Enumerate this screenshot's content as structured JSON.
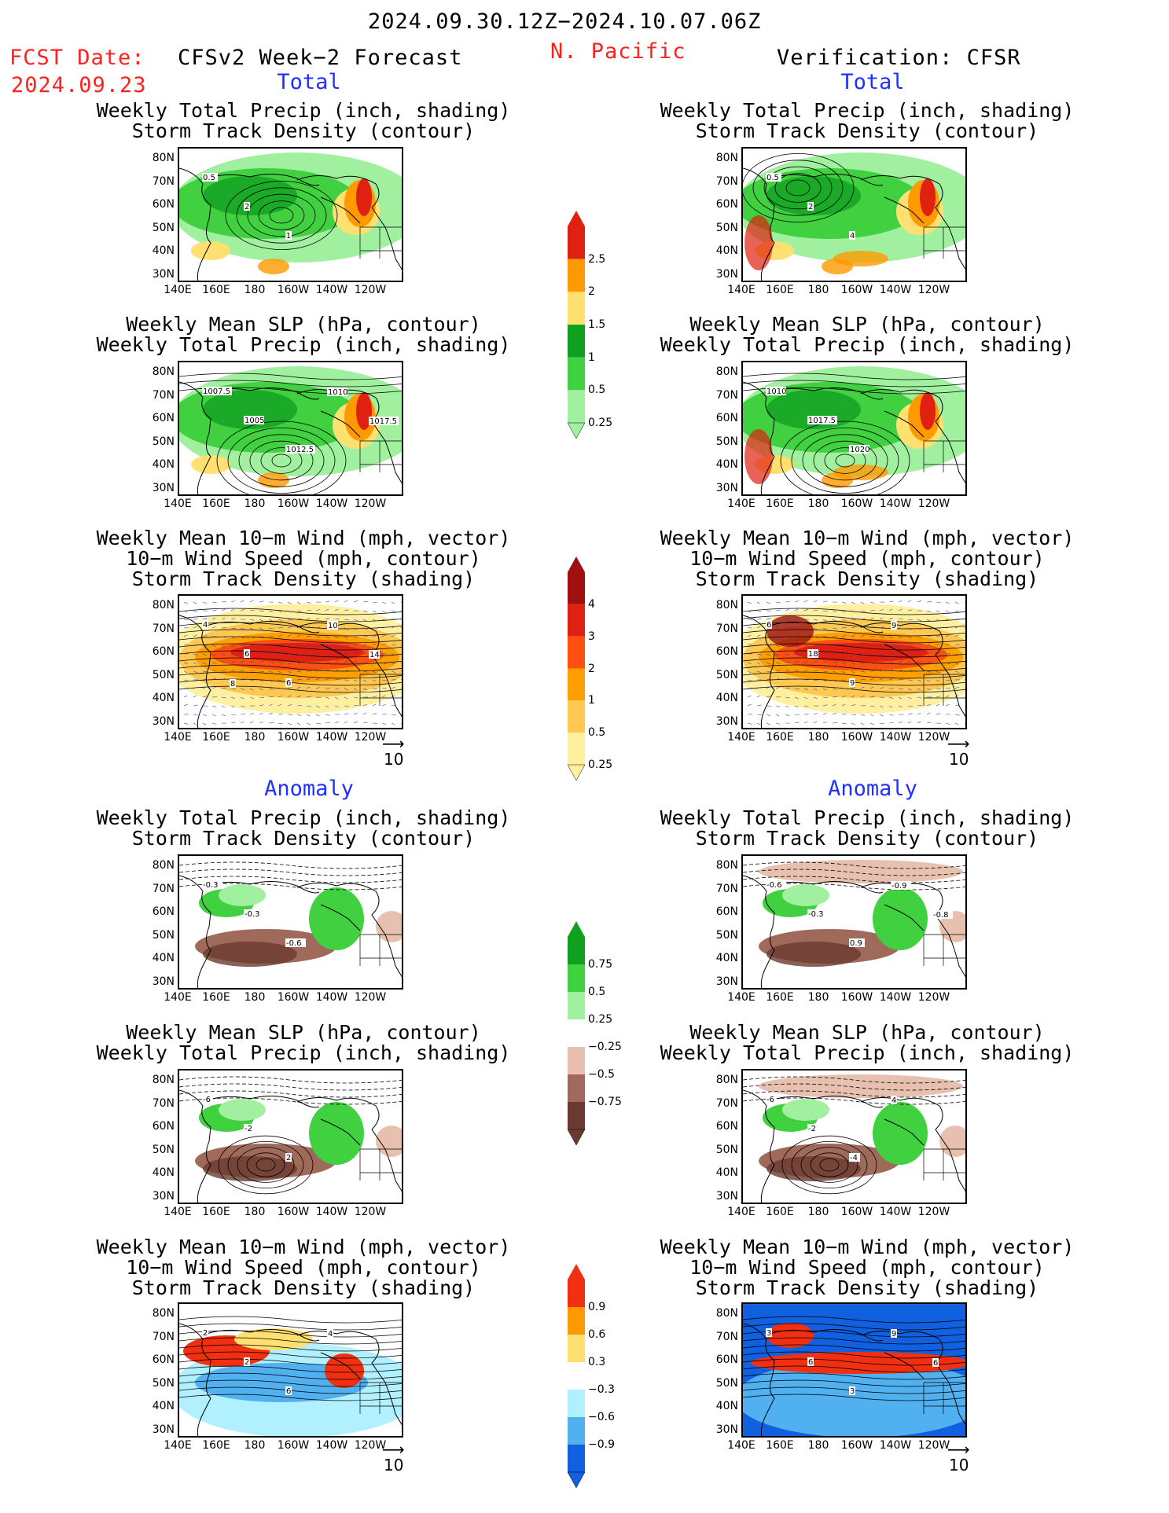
{
  "header": {
    "period": "2024.09.30.12Z−2024.10.07.06Z",
    "fcst_label": "FCST Date:",
    "fcst_date": "2024.09.23",
    "model_title": "CFSv2 Week−2 Forecast",
    "region": "N. Pacific",
    "verification": "Verification: CFSR"
  },
  "sections": {
    "total": "Total",
    "anomaly": "Anomaly"
  },
  "titles": {
    "precip_storm": [
      "Weekly Total Precip (inch, shading)",
      "Storm Track Density (contour)"
    ],
    "slp_precip": [
      "Weekly Mean SLP (hPa, contour)",
      "Weekly Total Precip (inch, shading)"
    ],
    "wind_storm": [
      "Weekly Mean 10−m Wind (mph, vector)",
      "10−m Wind Speed (mph, contour)",
      "Storm Track Density (shading)"
    ]
  },
  "axes": {
    "lat_ticks": [
      "80N",
      "70N",
      "60N",
      "50N",
      "40N",
      "30N"
    ],
    "lon_ticks": [
      "140E",
      "160E",
      "180",
      "160W",
      "140W",
      "120W"
    ]
  },
  "vector_ref": "10",
  "colorbars": {
    "precip_total": {
      "labels": [
        "2.5",
        "2",
        "1.5",
        "1",
        "0.5",
        "0.25"
      ],
      "colors": [
        "#e02010",
        "#ff9a00",
        "#ffe070",
        "#10a020",
        "#40d040",
        "#a0f0a0"
      ]
    },
    "storm_total": {
      "labels": [
        "4",
        "3",
        "2",
        "1",
        "0.5",
        "0.25"
      ],
      "colors": [
        "#a01010",
        "#e02010",
        "#ff5010",
        "#ffa000",
        "#ffc850",
        "#fff0a0"
      ]
    },
    "precip_anom": {
      "labels": [
        "0.75",
        "0.5",
        "0.25",
        "−0.25",
        "−0.5",
        "−0.75"
      ],
      "colors": [
        "#10a020",
        "#40d040",
        "#a0f0a0",
        "#ffffff",
        "#e8c0b0",
        "#a06a5a",
        "#6a3a30"
      ]
    },
    "storm_anom": {
      "labels": [
        "0.9",
        "0.6",
        "0.3",
        "−0.3",
        "−0.6",
        "−0.9"
      ],
      "colors": [
        "#f03010",
        "#ff9a00",
        "#ffe070",
        "#ffffff",
        "#b0f0ff",
        "#50b0f0",
        "#1060e0"
      ]
    }
  },
  "panel_labels": {
    "l1": [
      "0.5",
      "2",
      "1"
    ],
    "r1": [
      "0.5",
      "2",
      "4"
    ],
    "l2": [
      "1007.5",
      "1005",
      "1012.5",
      "1010",
      "1017.5"
    ],
    "r2": [
      "1010",
      "1017.5",
      "1020"
    ],
    "l3": [
      "4",
      "6",
      "6",
      "10",
      "14",
      "8"
    ],
    "r3": [
      "6",
      "18",
      "9",
      "9"
    ],
    "l4": [
      "-0.3",
      "-0.3",
      "-0.6"
    ],
    "r4": [
      "-0.6",
      "-0.3",
      "0.9",
      "-0.9",
      "-0.8"
    ],
    "l5": [
      "-6",
      "-2",
      "2"
    ],
    "r5": [
      "-6",
      "-2",
      "-4",
      "4"
    ],
    "l6": [
      "2",
      "2",
      "6",
      "4"
    ],
    "r6": [
      "3",
      "6",
      "3",
      "9",
      "6"
    ]
  }
}
